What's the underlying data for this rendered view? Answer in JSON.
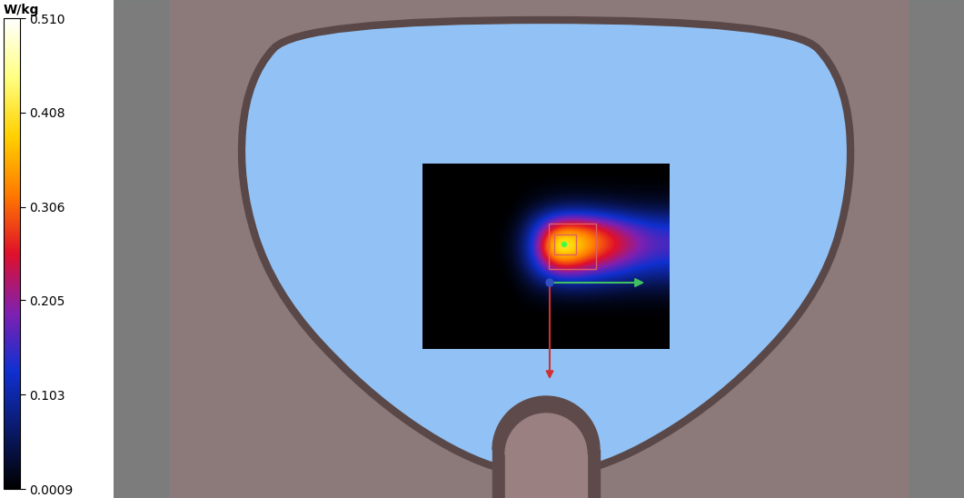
{
  "chart_data": {
    "type": "heatmap",
    "tick_labels": false,
    "cells": [
      [
        0.001,
        0.001,
        0.001,
        0.001,
        0.001,
        0.001,
        0.001,
        0.001,
        0.001,
        0.001,
        0.001,
        0.001
      ],
      [
        0.001,
        0.001,
        0.001,
        0.001,
        0.001,
        0.005,
        0.01,
        0.01,
        0.01,
        0.01,
        0.01,
        0.01
      ],
      [
        0.001,
        0.001,
        0.001,
        0.001,
        0.002,
        0.03,
        0.06,
        0.07,
        0.06,
        0.05,
        0.04,
        0.04
      ],
      [
        0.001,
        0.001,
        0.001,
        0.001,
        0.01,
        0.12,
        0.3,
        0.32,
        0.28,
        0.22,
        0.17,
        0.14
      ],
      [
        0.001,
        0.001,
        0.001,
        0.001,
        0.02,
        0.16,
        0.51,
        0.42,
        0.33,
        0.27,
        0.21,
        0.17
      ],
      [
        0.001,
        0.001,
        0.001,
        0.001,
        0.01,
        0.12,
        0.28,
        0.27,
        0.22,
        0.18,
        0.14,
        0.12
      ],
      [
        0.001,
        0.001,
        0.001,
        0.001,
        0.002,
        0.04,
        0.07,
        0.08,
        0.07,
        0.06,
        0.05,
        0.05
      ],
      [
        0.001,
        0.001,
        0.001,
        0.001,
        0.001,
        0.006,
        0.01,
        0.01,
        0.01,
        0.01,
        0.01,
        0.01
      ],
      [
        0.001,
        0.001,
        0.001,
        0.001,
        0.001,
        0.001,
        0.001,
        0.001,
        0.001,
        0.001,
        0.001,
        0.001
      ],
      [
        0.001,
        0.001,
        0.001,
        0.001,
        0.001,
        0.001,
        0.001,
        0.001,
        0.001,
        0.001,
        0.001,
        0.001
      ]
    ],
    "colorbar_label": "W/kg",
    "colorbar_range": [
      0.0009,
      {
        "value": 0.51,
        "label": "0.510"
      }
    ],
    "colorbar_ticks": [
      0.0009,
      0.103,
      0.205,
      0.306,
      0.408,
      {
        "value": 0.51,
        "label": "0.510"
      }
    ]
  }
}
